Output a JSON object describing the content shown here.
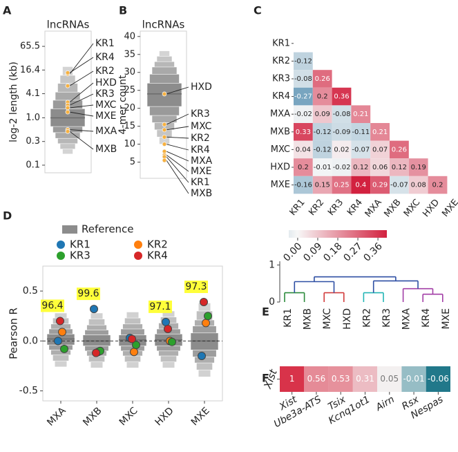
{
  "chart_data": [
    {
      "type": "boxen",
      "panel": "A",
      "title": "lncRNAs",
      "ylabel": "log-2 length (kb)",
      "log_scale": true,
      "ylim": [
        0.04,
        160
      ],
      "yticks": [
        {
          "value": 0.0625,
          "label": "0.1"
        },
        {
          "value": 0.25,
          "label": "0.3"
        },
        {
          "value": 1,
          "label": "1.0"
        },
        4.1,
        16.4,
        65.5
      ],
      "color": "#8c8c8c",
      "median": 1,
      "levels": [
        [
          0.6,
          1.7
        ],
        [
          0.42,
          2.8
        ],
        [
          0.3,
          4.5
        ],
        [
          0.22,
          7.5
        ],
        [
          0.16,
          12
        ],
        [
          0.12,
          20
        ]
      ],
      "point_color": "#f7b140",
      "points": {
        "labels": [
          "KR1",
          "KR4",
          "KR2",
          "HXD",
          "KR3",
          "MXC",
          "MXE",
          "MXA",
          "MXB"
        ],
        "values": [
          13,
          14,
          6.5,
          2.5,
          2.1,
          1.8,
          1.4,
          0.5,
          0.45
        ]
      }
    },
    {
      "type": "boxen",
      "panel": "B",
      "title": "lncRNAs",
      "ylabel": "4-mer count",
      "log_scale": false,
      "ylim": [
        0.5,
        41.5
      ],
      "yticks": [
        5,
        10,
        15,
        20,
        25,
        30,
        35,
        40
      ],
      "color": "#8c8c8c",
      "median": 24,
      "levels": [
        [
          20.5,
          27
        ],
        [
          18,
          29.5
        ],
        [
          16,
          31.5
        ],
        [
          14,
          33
        ],
        [
          12,
          34.5
        ],
        [
          10,
          36
        ]
      ],
      "point_color": "#f7b140",
      "points": {
        "labels": [
          "HXD",
          "KR3",
          "MXC",
          "KR2",
          "KR4",
          "MXA",
          "MXE",
          "KR1",
          "MXB"
        ],
        "values": [
          24,
          15.5,
          14,
          12,
          10,
          8,
          7,
          6.5,
          5.5
        ]
      }
    },
    {
      "type": "heatmap_triangle",
      "panel": "C",
      "labels": [
        "KR1",
        "KR2",
        "KR3",
        "KR4",
        "MXA",
        "MXB",
        "MXC",
        "HXD",
        "MXE"
      ],
      "matrix": [
        [],
        [
          -0.12
        ],
        [
          -0.08,
          0.26
        ],
        [
          -0.27,
          0.2,
          0.36
        ],
        [
          -0.02,
          0.09,
          -0.08,
          0.21
        ],
        [
          0.33,
          -0.12,
          -0.09,
          -0.11,
          0.21
        ],
        [
          0.04,
          -0.12,
          0.02,
          -0.07,
          0.07,
          0.26
        ],
        [
          0.2,
          -0.01,
          -0.02,
          0.12,
          0.06,
          0.12,
          0.19
        ],
        [
          -0.16,
          0.15,
          0.25,
          0.4,
          0.29,
          -0.07,
          0.08,
          0.2
        ]
      ],
      "clim": [
        -0.4,
        0.4
      ],
      "colors": {
        "negative": "#3b7ea6",
        "center": "#f7f7f7",
        "positive": "#d2213f"
      },
      "colorbar_lim": [
        -0.04,
        0.4
      ],
      "colorbar_ticks": [
        {
          "value": 0,
          "label": "0.00"
        },
        0.09,
        0.18,
        0.27,
        0.36
      ]
    },
    {
      "type": "boxen_group",
      "panel": "D",
      "ylabel": "Pearson R",
      "categories": [
        "MXA",
        "MXB",
        "MXC",
        "HXD",
        "MXE"
      ],
      "ylim": [
        -0.6,
        0.75
      ],
      "yticks": [
        -0.5,
        {
          "value": 0,
          "label": "0.0"
        },
        0.5
      ],
      "reference_name": "Reference",
      "reference_color": "#8c8c8c",
      "reference_line": 0,
      "reference": [
        {
          "median": 0.02,
          "levels": [
            [
              -0.04,
              0.07
            ],
            [
              -0.09,
              0.12
            ],
            [
              -0.14,
              0.17
            ],
            [
              -0.2,
              0.23
            ],
            [
              -0.26,
              0.28
            ]
          ]
        },
        {
          "median": 0.0,
          "levels": [
            [
              -0.05,
              0.06
            ],
            [
              -0.1,
              0.11
            ],
            [
              -0.15,
              0.16
            ],
            [
              -0.21,
              0.22
            ],
            [
              -0.27,
              0.28
            ]
          ]
        },
        {
          "median": 0.01,
          "levels": [
            [
              -0.05,
              0.06
            ],
            [
              -0.1,
              0.12
            ],
            [
              -0.15,
              0.17
            ],
            [
              -0.21,
              0.23
            ],
            [
              -0.27,
              0.29
            ]
          ]
        },
        {
          "median": 0.01,
          "levels": [
            [
              -0.05,
              0.07
            ],
            [
              -0.1,
              0.12
            ],
            [
              -0.15,
              0.18
            ],
            [
              -0.21,
              0.24
            ],
            [
              -0.27,
              0.3
            ]
          ]
        },
        {
          "median": 0.0,
          "levels": [
            [
              -0.09,
              0.08
            ],
            [
              -0.16,
              0.15
            ],
            [
              -0.22,
              0.21
            ],
            [
              -0.29,
              0.3
            ],
            [
              -0.36,
              0.38
            ]
          ]
        }
      ],
      "series": [
        {
          "name": "KR1",
          "color": "#1f77b4",
          "values": [
            0.0,
            0.32,
            0.03,
            0.19,
            -0.15
          ]
        },
        {
          "name": "KR2",
          "color": "#ff7f0e",
          "values": [
            0.09,
            -0.11,
            -0.11,
            0.0,
            0.18
          ]
        },
        {
          "name": "KR3",
          "color": "#2ca02c",
          "values": [
            -0.08,
            -0.1,
            -0.04,
            -0.01,
            0.25
          ]
        },
        {
          "name": "KR4",
          "color": "#d62728",
          "values": [
            0.2,
            -0.12,
            0.02,
            0.12,
            0.39
          ]
        }
      ],
      "annotations": [
        "96.4",
        "99.6",
        null,
        "97.1",
        "97.3"
      ],
      "annotation_color": "#ffff3a"
    },
    {
      "type": "dendrogram",
      "panel": "E",
      "ylim": [
        0,
        1.1
      ],
      "yticks": [
        0,
        1
      ],
      "tree": {
        "height": 0.68,
        "color": "#2c4ea3",
        "children": [
          {
            "height": 0.55,
            "color": "#2c4ea3",
            "children": [
              {
                "height": 0.25,
                "color": "#2a8a3a",
                "children": [
                  {
                    "label": "KR1"
                  },
                  {
                    "label": "MXB"
                  }
                ]
              },
              {
                "height": 0.25,
                "color": "#d23b3b",
                "children": [
                  {
                    "label": "MXC"
                  },
                  {
                    "label": "HXD"
                  }
                ]
              }
            ]
          },
          {
            "height": 0.57,
            "color": "#2c4ea3",
            "children": [
              {
                "height": 0.25,
                "color": "#22b5b5",
                "children": [
                  {
                    "label": "KR2"
                  },
                  {
                    "label": "KR3"
                  }
                ]
              },
              {
                "height": 0.36,
                "color": "#a23ea6",
                "children": [
                  {
                    "label": "MXA"
                  },
                  {
                    "height": 0.21,
                    "color": "#a23ea6",
                    "children": [
                      {
                        "label": "KR4"
                      },
                      {
                        "label": "MXE"
                      }
                    ]
                  }
                ]
              }
            ]
          }
        ]
      }
    },
    {
      "type": "heatmap",
      "panel": "F",
      "row_label": "Xist",
      "categories": [
        "Xist",
        "Ube3a-ATS",
        "Tsix",
        "Kcnq1ot1",
        "Airn",
        "Rsx",
        "Nespas"
      ],
      "values": [
        1,
        0.56,
        0.53,
        0.31,
        0.05,
        -0.01,
        -0.06
      ],
      "clim": [
        -0.06,
        1
      ],
      "center": 0.03,
      "colors": {
        "negative": "#21788a",
        "center": "#f4f4f4",
        "positive": "#d8334a"
      }
    }
  ]
}
